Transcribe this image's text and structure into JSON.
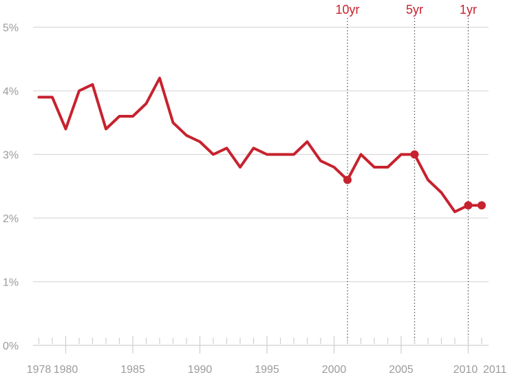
{
  "colors": {
    "series": "#c7222e",
    "grid": "#d9d9d9",
    "tick_text": "#9b9b9b",
    "ref_line": "#555555"
  },
  "chart_data": {
    "type": "line",
    "title": "",
    "xlabel": "",
    "ylabel": "",
    "xlim": [
      1978,
      2011
    ],
    "ylim": [
      0,
      5
    ],
    "grid": true,
    "y_ticks": [
      {
        "value": 0,
        "label": "0%"
      },
      {
        "value": 1,
        "label": "1%"
      },
      {
        "value": 2,
        "label": "2%"
      },
      {
        "value": 3,
        "label": "3%"
      },
      {
        "value": 4,
        "label": "4%"
      },
      {
        "value": 5,
        "label": "5%"
      }
    ],
    "x_tick_labels": [
      {
        "value": 1978,
        "label": "1978"
      },
      {
        "value": 1980,
        "label": "1980"
      },
      {
        "value": 1985,
        "label": "1985"
      },
      {
        "value": 1990,
        "label": "1990"
      },
      {
        "value": 1995,
        "label": "1995"
      },
      {
        "value": 2000,
        "label": "2000"
      },
      {
        "value": 2005,
        "label": "2005"
      },
      {
        "value": 2010,
        "label": "2010"
      },
      {
        "value": 2011,
        "label": "2011"
      }
    ],
    "series": [
      {
        "x": [
          1978,
          1979,
          1980,
          1981,
          1982,
          1983,
          1984,
          1985,
          1986,
          1987,
          1988,
          1989,
          1990,
          1991,
          1992,
          1993,
          1994,
          1995,
          1996,
          1997,
          1998,
          1999,
          2000,
          2001,
          2002,
          2003,
          2004,
          2005,
          2006,
          2007,
          2008,
          2009,
          2010,
          2011
        ],
        "values": [
          3.9,
          3.9,
          3.4,
          4.0,
          4.1,
          3.4,
          3.6,
          3.6,
          3.8,
          4.2,
          3.5,
          3.3,
          3.2,
          3.0,
          3.1,
          2.8,
          3.1,
          3.0,
          3.0,
          3.0,
          3.2,
          2.9,
          2.8,
          2.6,
          3.0,
          2.8,
          2.8,
          3.0,
          3.0,
          2.6,
          2.4,
          2.1,
          2.2,
          2.2
        ]
      }
    ],
    "highlighted_points": [
      {
        "x": 2001,
        "value": 2.6
      },
      {
        "x": 2006,
        "value": 3.0
      },
      {
        "x": 2010,
        "value": 2.2
      },
      {
        "x": 2011,
        "value": 2.2
      }
    ],
    "reference_lines": [
      {
        "x": 2001,
        "label": "10yr"
      },
      {
        "x": 2006,
        "label": "5yr"
      },
      {
        "x": 2010,
        "label": "1yr"
      }
    ]
  }
}
